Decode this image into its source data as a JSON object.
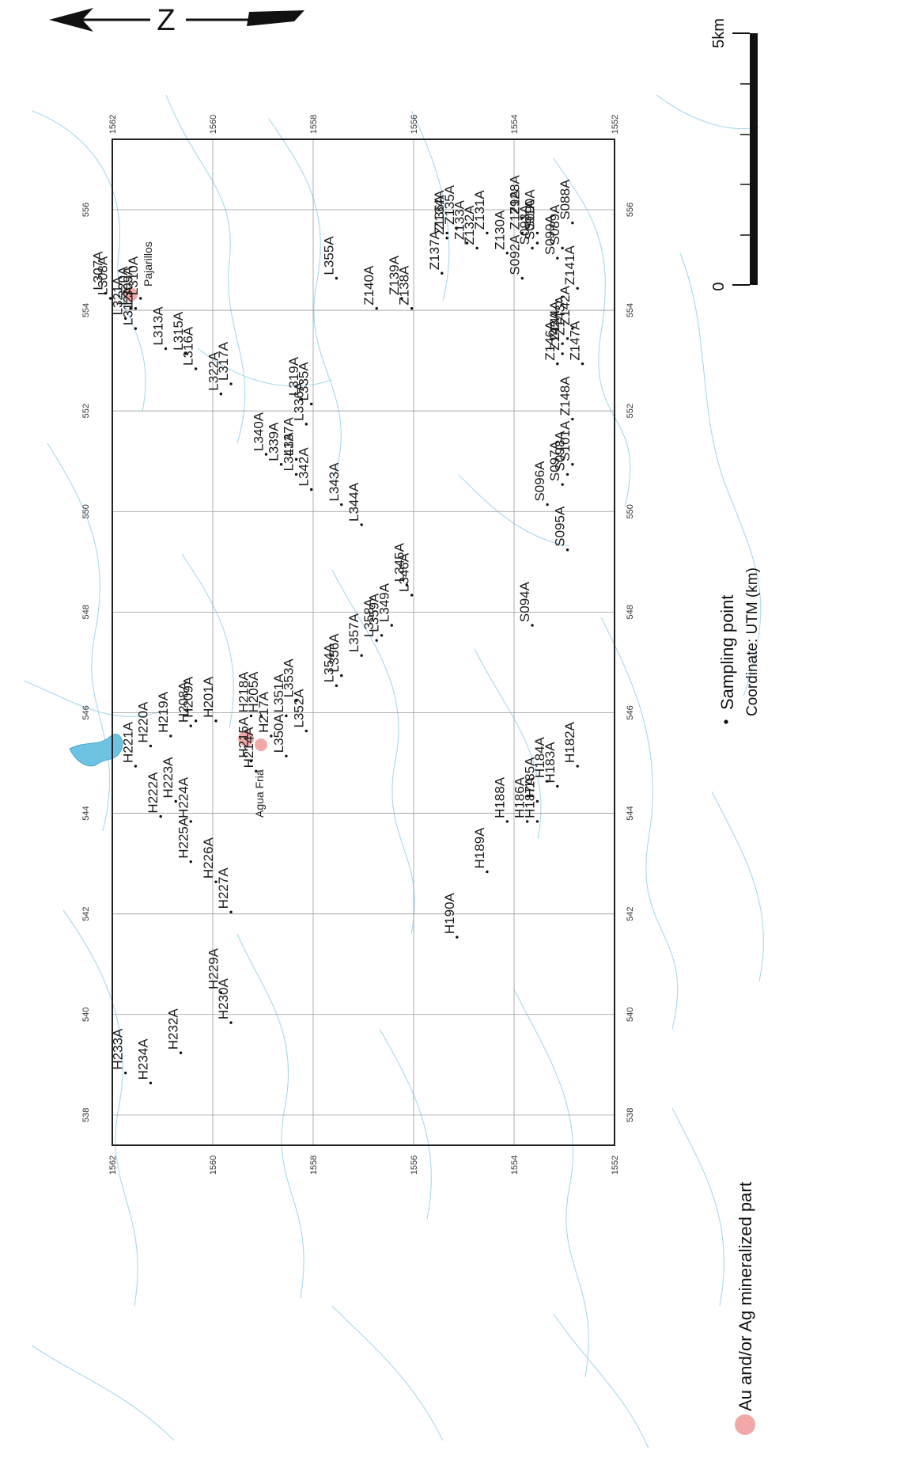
{
  "north_label": "Z",
  "scale_bar": {
    "zero": "0",
    "end": "5km"
  },
  "legend": {
    "sampling_point": "Sampling point",
    "coordinate_note": "Coordinate: UTM (km)",
    "mineralized": "Au and/or Ag mineralized part"
  },
  "place_labels": [
    "Pajarillos",
    "Agua Fria"
  ],
  "colors": {
    "frame": "#222222",
    "grid": "#9a9a9a",
    "drainage": "#7fc6e6",
    "lake": "#6ec3e3",
    "mineral": "#f3a8a8",
    "text": "#1a1a1a"
  },
  "grid": {
    "northing_labels": [
      "1562",
      "1560",
      "1558",
      "1556",
      "1554",
      "1552"
    ],
    "easting_labels": [
      "538",
      "540",
      "542",
      "544",
      "546",
      "548",
      "550",
      "552",
      "554",
      "556"
    ]
  },
  "samples": [
    {
      "id": "H233A",
      "n": 1561.8,
      "e": 538.9
    },
    {
      "id": "H234A",
      "n": 1561.3,
      "e": 538.7
    },
    {
      "id": "H232A",
      "n": 1560.7,
      "e": 539.3
    },
    {
      "id": "H229A",
      "n": 1559.9,
      "e": 540.5
    },
    {
      "id": "H230A",
      "n": 1559.7,
      "e": 539.9
    },
    {
      "id": "H227A",
      "n": 1559.7,
      "e": 542.1
    },
    {
      "id": "H226A",
      "n": 1560.0,
      "e": 542.7
    },
    {
      "id": "H225A",
      "n": 1560.5,
      "e": 543.1
    },
    {
      "id": "H224A",
      "n": 1560.5,
      "e": 543.9
    },
    {
      "id": "H223A",
      "n": 1560.8,
      "e": 544.3
    },
    {
      "id": "H222A",
      "n": 1561.1,
      "e": 544.0
    },
    {
      "id": "H221A",
      "n": 1561.6,
      "e": 545.0
    },
    {
      "id": "H220A",
      "n": 1561.3,
      "e": 545.4
    },
    {
      "id": "H219A",
      "n": 1560.9,
      "e": 545.6
    },
    {
      "id": "H208A",
      "n": 1560.5,
      "e": 545.8
    },
    {
      "id": "H209A",
      "n": 1560.4,
      "e": 545.9
    },
    {
      "id": "H201A",
      "n": 1560.0,
      "e": 545.9
    },
    {
      "id": "H218A",
      "n": 1559.3,
      "e": 546.0
    },
    {
      "id": "H205A",
      "n": 1559.1,
      "e": 546.0
    },
    {
      "id": "H217A",
      "n": 1558.9,
      "e": 545.6
    },
    {
      "id": "H215A",
      "n": 1559.3,
      "e": 545.1
    },
    {
      "id": "H214A",
      "n": 1559.2,
      "e": 544.9
    },
    {
      "id": "L350A",
      "n": 1558.6,
      "e": 545.2
    },
    {
      "id": "L351A",
      "n": 1558.6,
      "e": 546.0
    },
    {
      "id": "L352A",
      "n": 1558.2,
      "e": 545.7
    },
    {
      "id": "L353A",
      "n": 1558.4,
      "e": 546.3
    },
    {
      "id": "L354A",
      "n": 1557.6,
      "e": 546.6
    },
    {
      "id": "L356A",
      "n": 1557.5,
      "e": 546.8
    },
    {
      "id": "L357A",
      "n": 1557.1,
      "e": 547.2
    },
    {
      "id": "L358A",
      "n": 1556.8,
      "e": 547.5
    },
    {
      "id": "L359A",
      "n": 1556.7,
      "e": 547.6
    },
    {
      "id": "L349A",
      "n": 1556.5,
      "e": 547.8
    },
    {
      "id": "L345A",
      "n": 1556.2,
      "e": 548.6
    },
    {
      "id": "L346A",
      "n": 1556.1,
      "e": 548.4
    },
    {
      "id": "L343A",
      "n": 1557.5,
      "e": 550.2
    },
    {
      "id": "L344A",
      "n": 1557.1,
      "e": 549.8
    },
    {
      "id": "L340A",
      "n": 1559.0,
      "e": 551.2
    },
    {
      "id": "L339A",
      "n": 1558.7,
      "e": 551.0
    },
    {
      "id": "L337A",
      "n": 1558.4,
      "e": 551.1
    },
    {
      "id": "L341A",
      "n": 1558.4,
      "e": 550.8
    },
    {
      "id": "L342A",
      "n": 1558.1,
      "e": 550.5
    },
    {
      "id": "L336A",
      "n": 1558.2,
      "e": 551.8
    },
    {
      "id": "L335A",
      "n": 1558.1,
      "e": 552.2
    },
    {
      "id": "L319A",
      "n": 1558.3,
      "e": 552.3
    },
    {
      "id": "L322A",
      "n": 1559.9,
      "e": 552.4
    },
    {
      "id": "L317A",
      "n": 1559.7,
      "e": 552.6
    },
    {
      "id": "L316A",
      "n": 1560.4,
      "e": 552.9
    },
    {
      "id": "L315A",
      "n": 1560.6,
      "e": 553.2
    },
    {
      "id": "L313A",
      "n": 1561.0,
      "e": 553.3
    },
    {
      "id": "L312A",
      "n": 1561.6,
      "e": 553.7
    },
    {
      "id": "L321A",
      "n": 1561.8,
      "e": 553.9
    },
    {
      "id": "L320A",
      "n": 1561.7,
      "e": 554.1
    },
    {
      "id": "L309A",
      "n": 1561.6,
      "e": 554.1
    },
    {
      "id": "L310A",
      "n": 1561.5,
      "e": 554.3
    },
    {
      "id": "L308A",
      "n": 1562.1,
      "e": 554.3
    },
    {
      "id": "L307A",
      "n": 1562.2,
      "e": 554.4
    },
    {
      "id": "L355A",
      "n": 1557.6,
      "e": 554.7
    },
    {
      "id": "Z140A",
      "n": 1556.8,
      "e": 554.1
    },
    {
      "id": "Z139A",
      "n": 1556.3,
      "e": 554.3
    },
    {
      "id": "Z138A",
      "n": 1556.1,
      "e": 554.1
    },
    {
      "id": "Z137A",
      "n": 1555.5,
      "e": 554.8
    },
    {
      "id": "Z136A",
      "n": 1555.4,
      "e": 555.5
    },
    {
      "id": "Z135A",
      "n": 1555.2,
      "e": 555.7
    },
    {
      "id": "Z134A",
      "n": 1555.4,
      "e": 555.6
    },
    {
      "id": "Z133A",
      "n": 1555.0,
      "e": 555.4
    },
    {
      "id": "Z132A",
      "n": 1554.8,
      "e": 555.3
    },
    {
      "id": "Z131A",
      "n": 1554.6,
      "e": 555.6
    },
    {
      "id": "Z130A",
      "n": 1554.2,
      "e": 555.2
    },
    {
      "id": "Z129A",
      "n": 1553.9,
      "e": 555.6
    },
    {
      "id": "Z128A",
      "n": 1553.9,
      "e": 555.9
    },
    {
      "id": "S092A",
      "n": 1553.9,
      "e": 554.7
    },
    {
      "id": "S093A",
      "n": 1553.7,
      "e": 555.3
    },
    {
      "id": "S090A",
      "n": 1553.6,
      "e": 555.6
    },
    {
      "id": "S091A",
      "n": 1553.6,
      "e": 555.4
    },
    {
      "id": "S089A",
      "n": 1553.1,
      "e": 555.3
    },
    {
      "id": "S088A",
      "n": 1552.9,
      "e": 555.8
    },
    {
      "id": "S099A",
      "n": 1553.2,
      "e": 555.1
    },
    {
      "id": "Z141A",
      "n": 1552.8,
      "e": 554.5
    },
    {
      "id": "Z142A",
      "n": 1552.9,
      "e": 553.7
    },
    {
      "id": "Z143A",
      "n": 1553.0,
      "e": 553.5
    },
    {
      "id": "Z144A",
      "n": 1553.1,
      "e": 553.4
    },
    {
      "id": "Z145A",
      "n": 1553.1,
      "e": 553.2
    },
    {
      "id": "Z146A",
      "n": 1553.2,
      "e": 553.0
    },
    {
      "id": "Z147A",
      "n": 1552.7,
      "e": 553.0
    },
    {
      "id": "Z148A",
      "n": 1552.9,
      "e": 551.9
    },
    {
      "id": "S101A",
      "n": 1552.9,
      "e": 551.0
    },
    {
      "id": "S097A",
      "n": 1553.1,
      "e": 550.6
    },
    {
      "id": "S098A",
      "n": 1553.0,
      "e": 550.8
    },
    {
      "id": "S096A",
      "n": 1553.4,
      "e": 550.2
    },
    {
      "id": "S095A",
      "n": 1553.0,
      "e": 549.3
    },
    {
      "id": "S094A",
      "n": 1553.7,
      "e": 547.8
    },
    {
      "id": "H182A",
      "n": 1552.8,
      "e": 545.0
    },
    {
      "id": "H183A",
      "n": 1553.2,
      "e": 544.6
    },
    {
      "id": "H184A",
      "n": 1553.4,
      "e": 544.7
    },
    {
      "id": "H185A",
      "n": 1553.6,
      "e": 544.3
    },
    {
      "id": "H186A",
      "n": 1553.8,
      "e": 543.9
    },
    {
      "id": "H187A",
      "n": 1553.6,
      "e": 543.9
    },
    {
      "id": "H188A",
      "n": 1554.2,
      "e": 543.9
    },
    {
      "id": "H189A",
      "n": 1554.6,
      "e": 542.9
    },
    {
      "id": "H190A",
      "n": 1555.2,
      "e": 541.6
    }
  ]
}
